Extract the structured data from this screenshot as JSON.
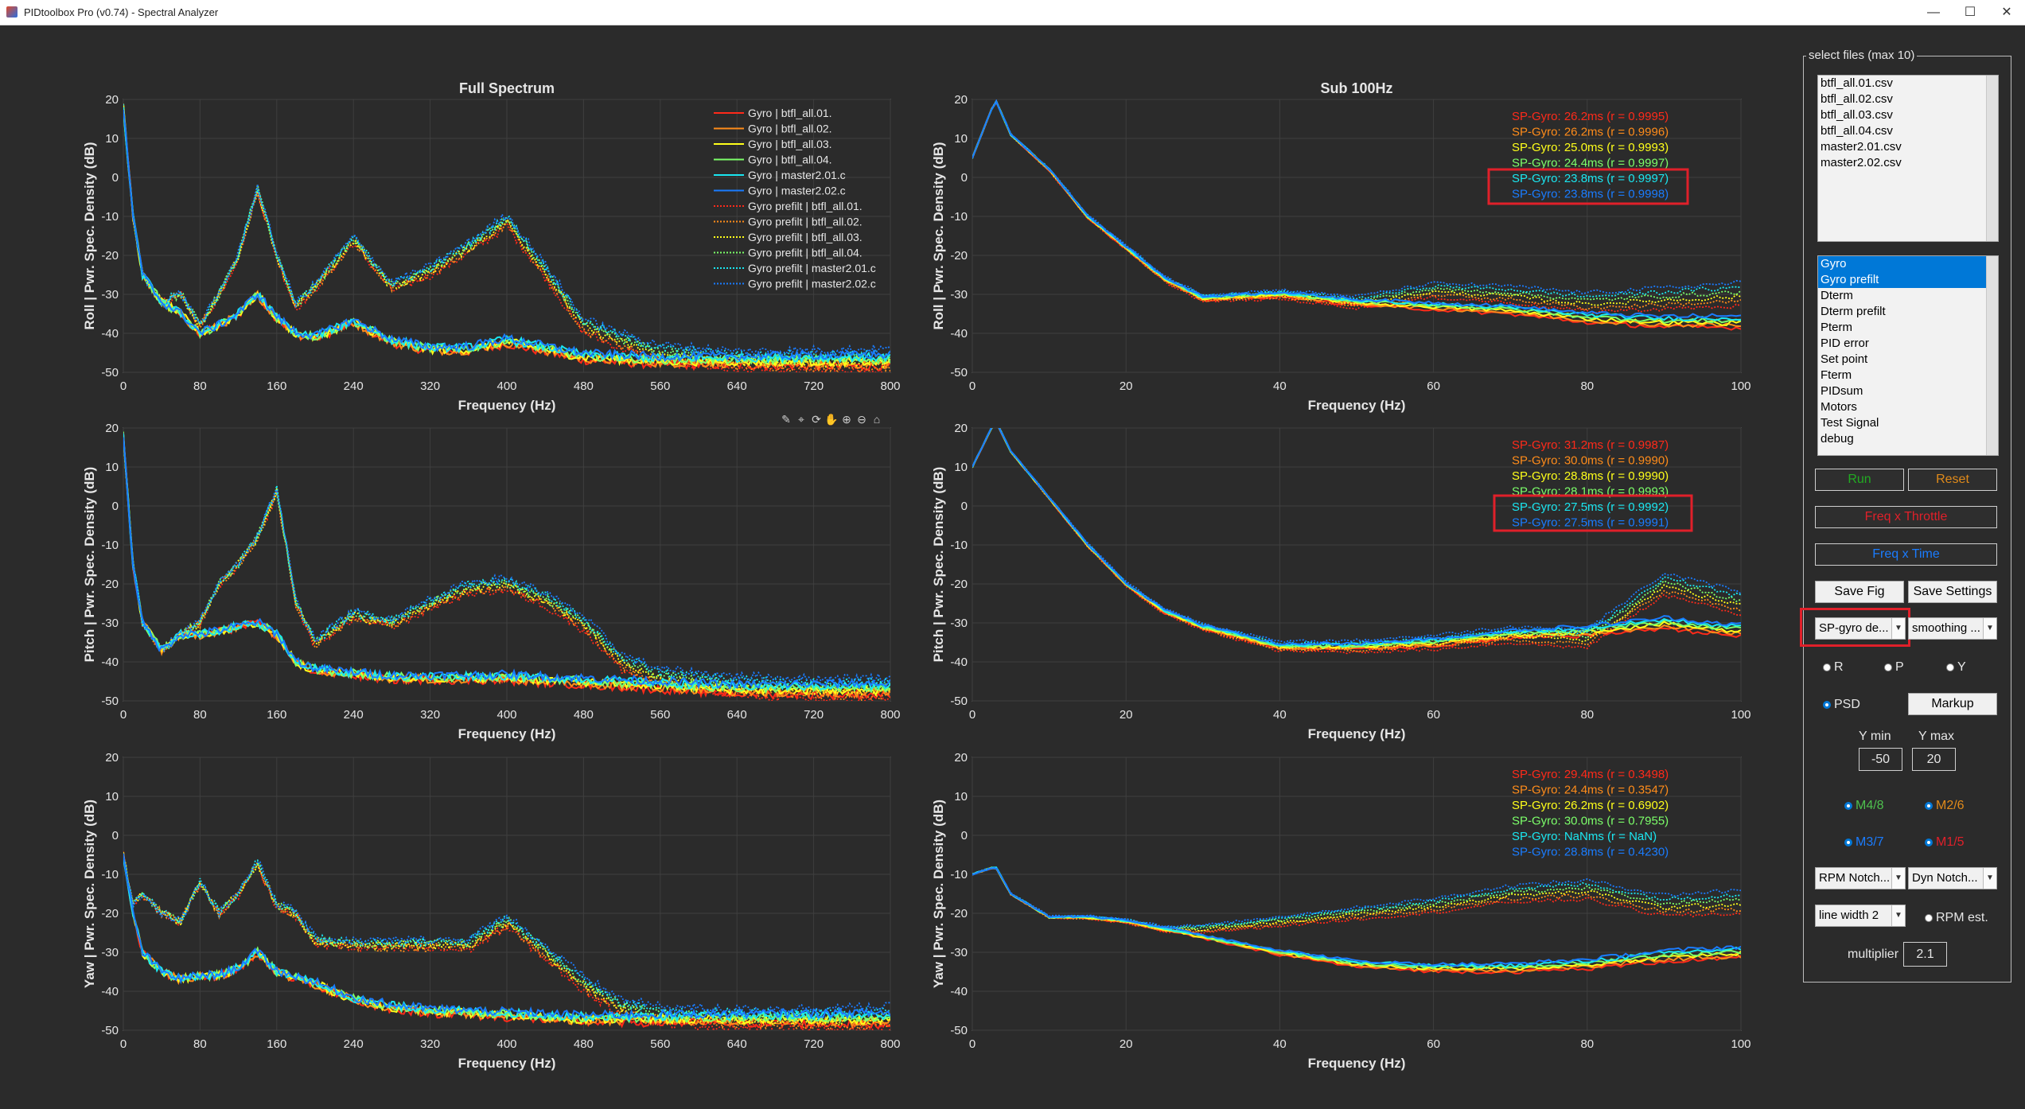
{
  "window": {
    "title": "PIDtoolbox Pro (v0.74) - Spectral Analyzer",
    "controls": [
      "—",
      "☐",
      "✕"
    ]
  },
  "colors": {
    "background": "#2b2b2b",
    "axes_bg": "#2b2b2b",
    "grid": "#3f3f3f",
    "series": [
      "#ff2a1a",
      "#ff8c1a",
      "#ffff1a",
      "#7cff6a",
      "#1ae6f0",
      "#1a7cff"
    ]
  },
  "toolbar_icons": [
    "brush-icon",
    "datatip-icon",
    "rotate-icon",
    "pan-icon",
    "zoom-in-icon",
    "zoom-out-icon",
    "home-icon"
  ],
  "charts": {
    "full_title": "Full Spectrum",
    "sub_title": "Sub 100Hz",
    "xlabel": "Frequency (Hz)",
    "ylabels": [
      "Roll  |  Pwr. Spec. Density (dB)",
      "Pitch  |  Pwr. Spec. Density (dB)",
      "Yaw  |  Pwr. Spec. Density (dB)"
    ],
    "full_xticks": [
      "0",
      "80",
      "160",
      "240",
      "320",
      "400",
      "480",
      "560",
      "640",
      "720",
      "800"
    ],
    "sub_xticks": [
      "0",
      "20",
      "40",
      "60",
      "80",
      "100"
    ],
    "yticks": [
      "20",
      "10",
      "0",
      "-10",
      "-20",
      "-30",
      "-40",
      "-50"
    ],
    "legend": [
      "Gyro | btfl_all.01.",
      "Gyro | btfl_all.02.",
      "Gyro | btfl_all.03.",
      "Gyro | btfl_all.04.",
      "Gyro | master2.01.c",
      "Gyro | master2.02.c",
      "Gyro prefilt | btfl_all.01.",
      "Gyro prefilt | btfl_all.02.",
      "Gyro prefilt | btfl_all.03.",
      "Gyro prefilt | btfl_all.04.",
      "Gyro prefilt | master2.01.c",
      "Gyro prefilt | master2.02.c"
    ],
    "annotations": [
      [
        "SP-Gyro: 26.2ms (r = 0.9995)",
        "SP-Gyro: 26.2ms (r = 0.9996)",
        "SP-Gyro: 25.0ms (r = 0.9993)",
        "SP-Gyro: 24.4ms (r = 0.9997)",
        "SP-Gyro: 23.8ms (r = 0.9997)",
        "SP-Gyro: 23.8ms (r = 0.9998)"
      ],
      [
        "SP-Gyro: 31.2ms (r = 0.9987)",
        "SP-Gyro: 30.0ms (r = 0.9990)",
        "SP-Gyro: 28.8ms (r = 0.9990)",
        "SP-Gyro: 28.1ms (r = 0.9993)",
        "SP-Gyro: 27.5ms (r = 0.9992)",
        "SP-Gyro: 27.5ms (r = 0.9991)"
      ],
      [
        "SP-Gyro: 29.4ms (r = 0.3498)",
        "SP-Gyro: 24.4ms (r = 0.3547)",
        "SP-Gyro: 26.2ms (r = 0.6902)",
        "SP-Gyro: 30.0ms (r = 0.7955)",
        "SP-Gyro: NaNms (r = NaN)",
        "SP-Gyro: 28.8ms (r = 0.4230)"
      ]
    ]
  },
  "chart_data": [
    {
      "type": "line",
      "title": "Full Spectrum",
      "xlabel": "Frequency (Hz)",
      "ylabel": "Roll  |  Pwr. Spec. Density (dB)",
      "xlim": [
        0,
        800
      ],
      "ylim": [
        -50,
        20
      ],
      "grid": true,
      "legend": "top-right",
      "series": [
        {
          "name": "Gyro",
          "x": [
            0,
            10,
            20,
            40,
            60,
            80,
            100,
            120,
            140,
            160,
            180,
            200,
            240,
            280,
            320,
            360,
            400,
            440,
            480,
            560,
            640,
            720,
            800
          ],
          "y": [
            18,
            -10,
            -25,
            -32,
            -35,
            -40,
            -38,
            -35,
            -30,
            -36,
            -40,
            -41,
            -37,
            -42,
            -44,
            -44,
            -42,
            -44,
            -46,
            -47,
            -47,
            -47,
            -47
          ]
        },
        {
          "name": "Gyro prefilt",
          "x": [
            0,
            10,
            20,
            40,
            60,
            80,
            100,
            120,
            140,
            160,
            180,
            200,
            240,
            280,
            320,
            360,
            400,
            440,
            480,
            520,
            560,
            640,
            720,
            800
          ],
          "y": [
            18,
            -10,
            -25,
            -32,
            -30,
            -38,
            -30,
            -20,
            -3,
            -20,
            -33,
            -28,
            -16,
            -28,
            -24,
            -18,
            -11,
            -24,
            -38,
            -42,
            -45,
            -47,
            -47,
            -47
          ]
        }
      ]
    },
    {
      "type": "line",
      "title": "Sub 100Hz",
      "xlabel": "Frequency (Hz)",
      "ylabel": "Roll  |  Pwr. Spec. Density (dB)",
      "xlim": [
        0,
        100
      ],
      "ylim": [
        -50,
        20
      ],
      "grid": true,
      "series": [
        {
          "name": "Gyro",
          "x": [
            0,
            3,
            5,
            10,
            15,
            20,
            25,
            30,
            40,
            50,
            60,
            70,
            80,
            90,
            100
          ],
          "y": [
            5,
            20,
            11,
            2,
            -10,
            -18,
            -26,
            -31,
            -30,
            -32,
            -33,
            -34,
            -36,
            -37,
            -37
          ]
        },
        {
          "name": "Gyro prefilt",
          "x": [
            0,
            3,
            5,
            10,
            15,
            20,
            25,
            30,
            40,
            50,
            60,
            70,
            80,
            90,
            100
          ],
          "y": [
            5,
            20,
            11,
            2,
            -10,
            -18,
            -26,
            -31,
            -30,
            -32,
            -29,
            -30,
            -32,
            -31,
            -30
          ]
        }
      ]
    },
    {
      "type": "line",
      "xlabel": "Frequency (Hz)",
      "ylabel": "Pitch  |  Pwr. Spec. Density (dB)",
      "xlim": [
        0,
        800
      ],
      "ylim": [
        -50,
        20
      ],
      "grid": true,
      "series": [
        {
          "name": "Gyro",
          "x": [
            0,
            10,
            20,
            40,
            60,
            80,
            100,
            120,
            140,
            160,
            180,
            200,
            240,
            280,
            320,
            400,
            480,
            560,
            640,
            720,
            800
          ],
          "y": [
            18,
            -15,
            -30,
            -37,
            -33,
            -33,
            -32,
            -31,
            -30,
            -33,
            -40,
            -42,
            -43,
            -44,
            -44,
            -44,
            -45,
            -46,
            -47,
            -47,
            -47
          ]
        },
        {
          "name": "Gyro prefilt",
          "x": [
            0,
            10,
            20,
            40,
            60,
            80,
            100,
            120,
            140,
            160,
            180,
            200,
            240,
            280,
            320,
            360,
            400,
            440,
            480,
            520,
            560,
            640,
            720,
            800
          ],
          "y": [
            18,
            -15,
            -30,
            -37,
            -33,
            -30,
            -20,
            -15,
            -8,
            4,
            -25,
            -35,
            -28,
            -30,
            -25,
            -21,
            -20,
            -24,
            -30,
            -40,
            -44,
            -46,
            -47,
            -47
          ]
        }
      ]
    },
    {
      "type": "line",
      "xlabel": "Frequency (Hz)",
      "ylabel": "Pitch  |  Pwr. Spec. Density (dB)",
      "xlim": [
        0,
        100
      ],
      "ylim": [
        -50,
        20
      ],
      "grid": true,
      "series": [
        {
          "name": "Gyro",
          "x": [
            0,
            3,
            5,
            10,
            15,
            20,
            25,
            30,
            40,
            50,
            60,
            70,
            80,
            90,
            100
          ],
          "y": [
            10,
            22,
            14,
            2,
            -10,
            -20,
            -27,
            -31,
            -36,
            -36,
            -35,
            -33,
            -32,
            -30,
            -32
          ]
        },
        {
          "name": "Gyro prefilt",
          "x": [
            0,
            3,
            5,
            10,
            15,
            20,
            25,
            30,
            40,
            50,
            60,
            70,
            80,
            90,
            100
          ],
          "y": [
            10,
            22,
            14,
            2,
            -10,
            -20,
            -27,
            -31,
            -36,
            -36,
            -35,
            -33,
            -34,
            -20,
            -25
          ]
        }
      ]
    },
    {
      "type": "line",
      "xlabel": "Frequency (Hz)",
      "ylabel": "Yaw  |  Pwr. Spec. Density (dB)",
      "xlim": [
        0,
        800
      ],
      "ylim": [
        -50,
        20
      ],
      "grid": true,
      "series": [
        {
          "name": "Gyro",
          "x": [
            0,
            10,
            20,
            40,
            60,
            80,
            100,
            120,
            140,
            160,
            200,
            240,
            280,
            320,
            400,
            480,
            560,
            640,
            720,
            800
          ],
          "y": [
            -5,
            -20,
            -30,
            -35,
            -37,
            -36,
            -36,
            -34,
            -30,
            -35,
            -38,
            -42,
            -44,
            -45,
            -46,
            -47,
            -47,
            -47,
            -47,
            -47
          ]
        },
        {
          "name": "Gyro prefilt",
          "x": [
            0,
            10,
            20,
            40,
            60,
            80,
            100,
            120,
            140,
            160,
            180,
            200,
            240,
            280,
            320,
            360,
            400,
            440,
            480,
            520,
            560,
            640,
            720,
            800
          ],
          "y": [
            -5,
            -18,
            -15,
            -20,
            -22,
            -12,
            -20,
            -15,
            -7,
            -18,
            -20,
            -27,
            -28,
            -28,
            -28,
            -28,
            -22,
            -30,
            -38,
            -44,
            -46,
            -47,
            -47,
            -47
          ]
        }
      ]
    },
    {
      "type": "line",
      "xlabel": "Frequency (Hz)",
      "ylabel": "Yaw  |  Pwr. Spec. Density (dB)",
      "xlim": [
        0,
        100
      ],
      "ylim": [
        -50,
        20
      ],
      "grid": true,
      "series": [
        {
          "name": "Gyro",
          "x": [
            0,
            3,
            5,
            10,
            15,
            20,
            25,
            30,
            40,
            50,
            60,
            70,
            80,
            90,
            100
          ],
          "y": [
            -10,
            -8,
            -15,
            -21,
            -21,
            -22,
            -24,
            -26,
            -30,
            -33,
            -34,
            -34,
            -33,
            -31,
            -30
          ]
        },
        {
          "name": "Gyro prefilt",
          "x": [
            0,
            3,
            5,
            10,
            15,
            20,
            25,
            30,
            40,
            50,
            60,
            70,
            80,
            90,
            100
          ],
          "y": [
            -10,
            -8,
            -15,
            -21,
            -21,
            -22,
            -24,
            -24,
            -22,
            -20,
            -18,
            -15,
            -14,
            -18,
            -17
          ]
        }
      ]
    }
  ],
  "panel": {
    "legend": "select files (max 10)",
    "files": [
      "btfl_all.01.csv",
      "btfl_all.02.csv",
      "btfl_all.03.csv",
      "btfl_all.04.csv",
      "master2.01.csv",
      "master2.02.csv"
    ],
    "signals": [
      "Gyro",
      "Gyro prefilt",
      "Dterm",
      "Dterm prefilt",
      "Pterm",
      "PID error",
      "Set point",
      "Fterm",
      "PIDsum",
      "Motors",
      "Test Signal",
      "debug"
    ],
    "signals_selected": [
      0,
      1
    ],
    "run": "Run",
    "reset": "Reset",
    "freq_throttle": "Freq x Throttle",
    "freq_time": "Freq x Time",
    "save_fig": "Save Fig",
    "save_settings": "Save Settings",
    "sp_dropdown": "SP-gyro de...",
    "smoothing_dropdown": "smoothing ...",
    "radio_r": "R",
    "radio_p": "P",
    "radio_y": "Y",
    "radio_psd": "PSD",
    "markup": "Markup",
    "ymin_label": "Y min",
    "ymax_label": "Y max",
    "ymin": "-50",
    "ymax": "20",
    "m48": "M4/8",
    "m26": "M2/6",
    "m37": "M3/7",
    "m15": "M1/5",
    "rpm_notch": "RPM Notch...",
    "dyn_notch": "Dyn Notch...",
    "line_width": "line width 2",
    "rpm_est": "RPM est.",
    "multiplier_label": "multiplier",
    "multiplier": "2.1",
    "run_color": "#22aa22",
    "reset_color": "#e08a1a",
    "freq_throttle_color": "#e0202a",
    "freq_time_color": "#1a7cff"
  }
}
